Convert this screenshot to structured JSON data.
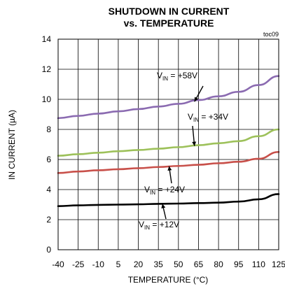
{
  "chart_data": {
    "type": "line",
    "title": "SHUTDOWN IN CURRENT",
    "subtitle": "vs. TEMPERATURE",
    "corner_label": "toc09",
    "xlabel": "TEMPERATURE (°C)",
    "ylabel": "IN CURRENT (µA)",
    "xlim": [
      -40,
      125
    ],
    "ylim": [
      0,
      14
    ],
    "x_ticks": [
      -40,
      -25,
      -10,
      5,
      20,
      35,
      50,
      65,
      80,
      95,
      110,
      125
    ],
    "y_ticks": [
      0,
      2,
      4,
      6,
      8,
      10,
      12,
      14
    ],
    "grid": true,
    "series": [
      {
        "name": "VIN = +58V",
        "color": "#8B6BB1",
        "x": [
          -40,
          -25,
          -10,
          5,
          20,
          35,
          50,
          65,
          80,
          95,
          110,
          125
        ],
        "y": [
          8.75,
          8.9,
          9.05,
          9.2,
          9.35,
          9.52,
          9.7,
          9.95,
          10.2,
          10.5,
          10.95,
          11.55
        ]
      },
      {
        "name": "VIN = +34V",
        "color": "#9DC15A",
        "x": [
          -40,
          -25,
          -10,
          5,
          20,
          35,
          50,
          65,
          80,
          95,
          110,
          125
        ],
        "y": [
          6.25,
          6.35,
          6.45,
          6.55,
          6.63,
          6.72,
          6.82,
          6.95,
          7.08,
          7.22,
          7.55,
          8.0
        ]
      },
      {
        "name": "VIN = +24V",
        "color": "#C8504A",
        "x": [
          -40,
          -25,
          -10,
          5,
          20,
          35,
          50,
          65,
          80,
          95,
          110,
          125
        ],
        "y": [
          5.1,
          5.2,
          5.28,
          5.35,
          5.42,
          5.5,
          5.57,
          5.65,
          5.75,
          5.85,
          6.05,
          6.5
        ]
      },
      {
        "name": "VIN = +12V",
        "color": "#000000",
        "x": [
          -40,
          -25,
          -10,
          5,
          20,
          35,
          50,
          65,
          80,
          95,
          110,
          125
        ],
        "y": [
          2.9,
          2.95,
          2.98,
          3.0,
          3.02,
          3.05,
          3.07,
          3.1,
          3.13,
          3.2,
          3.35,
          3.7
        ]
      }
    ],
    "annotations": [
      {
        "series": "VIN = +58V",
        "main": "V",
        "sub": "IN",
        "rest": " = +58V",
        "target_x": 62,
        "target_y": 9.85
      },
      {
        "series": "VIN = +34V",
        "main": "V",
        "sub": "IN",
        "rest": " = +34V",
        "target_x": 62,
        "target_y": 6.9
      },
      {
        "series": "VIN = +24V",
        "main": "V",
        "sub": "IN",
        "rest": " = +24V",
        "target_x": 43,
        "target_y": 5.55
      },
      {
        "series": "VIN = +12V",
        "main": "V",
        "sub": "IN",
        "rest": " = +12V",
        "target_x": 38,
        "target_y": 3.05
      }
    ]
  }
}
